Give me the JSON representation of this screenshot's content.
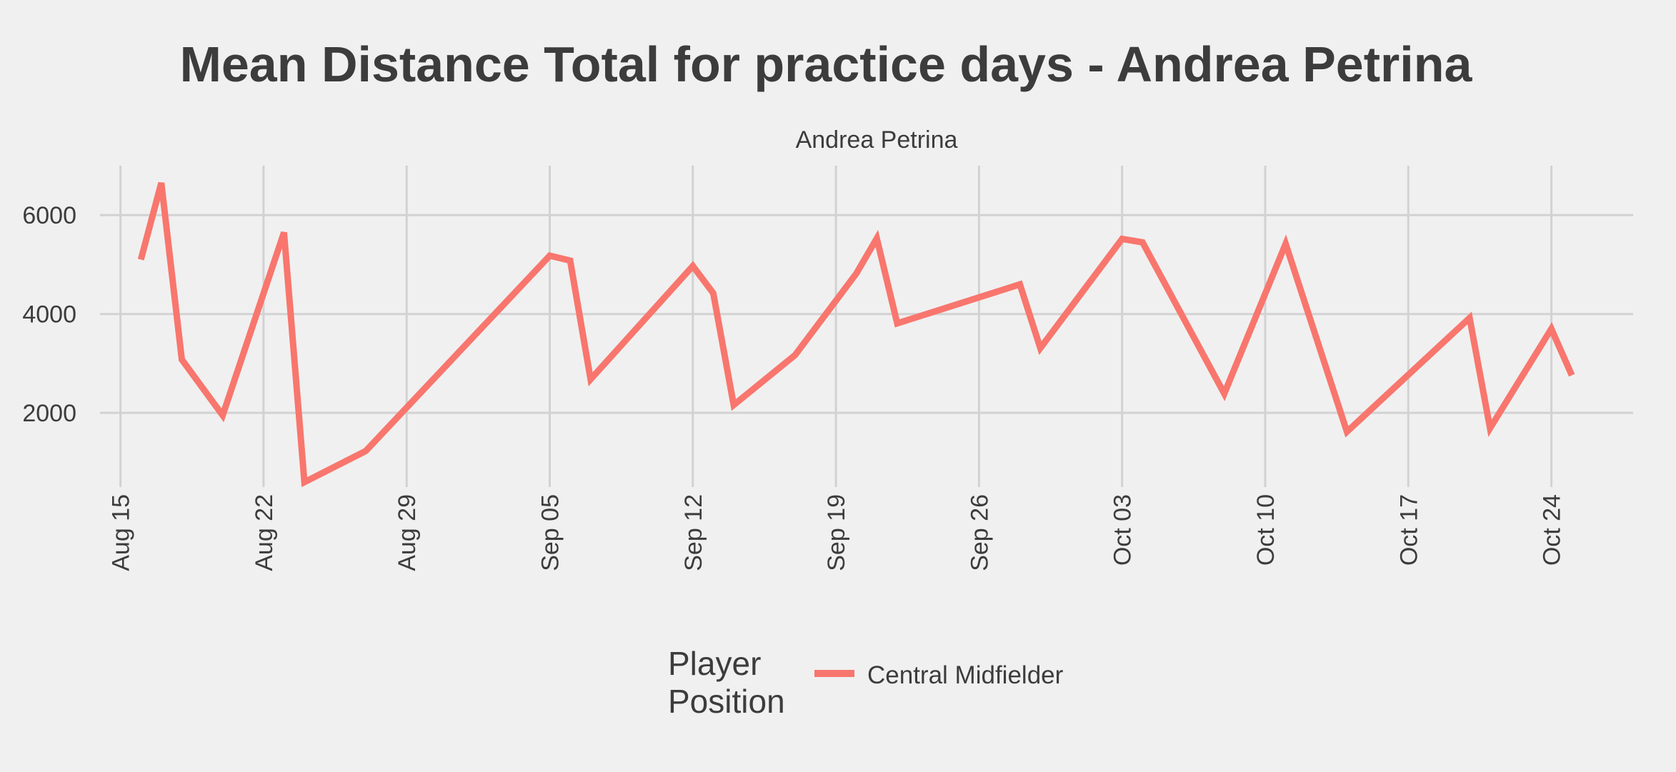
{
  "chart_data": {
    "type": "line",
    "title": "Mean Distance Total for practice days -  Andrea Petrina",
    "facet_label": "Andrea Petrina",
    "xlabel": "",
    "ylabel": "",
    "x_ticks": [
      "Aug 15",
      "Aug 22",
      "Aug 29",
      "Sep 05",
      "Sep 12",
      "Sep 19",
      "Sep 26",
      "Oct 03",
      "Oct 10",
      "Oct 17",
      "Oct 24"
    ],
    "y_ticks": [
      2000,
      4000,
      6000
    ],
    "ylim": [
      500,
      7000
    ],
    "xlim": [
      "2022-08-14",
      "2022-10-28"
    ],
    "grid": true,
    "legend": {
      "title_lines": [
        "Player",
        "Position"
      ],
      "position": "bottom"
    },
    "series": [
      {
        "name": "Central Midfielder",
        "color": "#f8766d",
        "points": [
          [
            "2022-08-16",
            5100
          ],
          [
            "2022-08-17",
            6650
          ],
          [
            "2022-08-18",
            3080
          ],
          [
            "2022-08-20",
            1950
          ],
          [
            "2022-08-23",
            5650
          ],
          [
            "2022-08-24",
            600
          ],
          [
            "2022-08-27",
            1230
          ],
          [
            "2022-09-05",
            5180
          ],
          [
            "2022-09-06",
            5080
          ],
          [
            "2022-09-07",
            2680
          ],
          [
            "2022-09-12",
            4970
          ],
          [
            "2022-09-13",
            4420
          ],
          [
            "2022-09-14",
            2160
          ],
          [
            "2022-09-17",
            3170
          ],
          [
            "2022-09-20",
            4820
          ],
          [
            "2022-09-21",
            5530
          ],
          [
            "2022-09-22",
            3810
          ],
          [
            "2022-09-28",
            4600
          ],
          [
            "2022-09-29",
            3310
          ],
          [
            "2022-10-03",
            5520
          ],
          [
            "2022-10-04",
            5450
          ],
          [
            "2022-10-08",
            2390
          ],
          [
            "2022-10-11",
            5420
          ],
          [
            "2022-10-14",
            1620
          ],
          [
            "2022-10-20",
            3920
          ],
          [
            "2022-10-21",
            1690
          ],
          [
            "2022-10-24",
            3700
          ],
          [
            "2022-10-25",
            2760
          ]
        ]
      }
    ]
  }
}
